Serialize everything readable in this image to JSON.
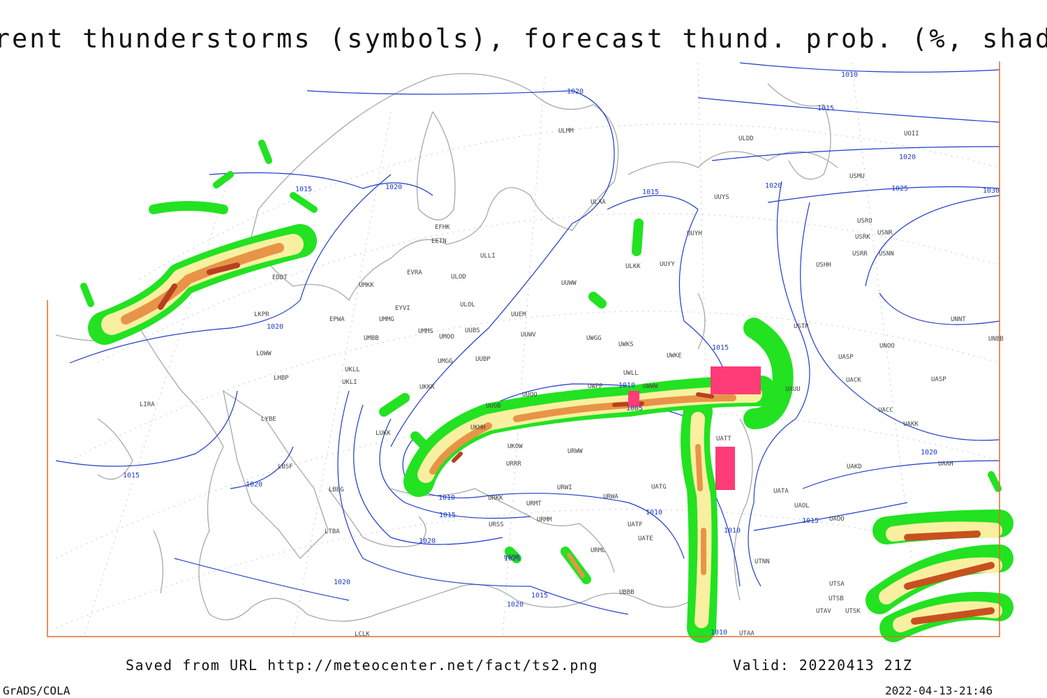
{
  "title": "Current thunderstorms (symbols), forecast thund. prob. (%, shaded)",
  "footer": {
    "source": "Saved from URL http://meteocenter.net/fact/ts2.png",
    "valid": "Valid: 20220413 21Z",
    "software": "GrADS/COLA",
    "timestamp": "2022-04-13-21:46"
  },
  "stations": [
    "ULMM",
    "ULDD",
    "UOII",
    "USMU",
    "ULAA",
    "UUYS",
    "USRO",
    "USRK",
    "USRR",
    "USNR",
    "USNN",
    "UUYH",
    "USHH",
    "EFHK",
    "EETN",
    "ULLI",
    "UUYY",
    "ULKK",
    "ULOD",
    "EVRA",
    "UMKK",
    "UUWW",
    "EDDT",
    "EYVI",
    "ULOL",
    "UUEM",
    "LKPR",
    "EPWA",
    "UMMG",
    "UNNT",
    "USTR",
    "UMMS",
    "UMOO",
    "UUBS",
    "UUWV",
    "UWGG",
    "UWKS",
    "UNOO",
    "UNBB",
    "UMBB",
    "LOWW",
    "UWKE",
    "UASP",
    "UUBP",
    "UMGG",
    "UACK",
    "UASP",
    "UKLL",
    "LHBP",
    "UKLI",
    "UKKK",
    "UWPP",
    "UWWW",
    "UWLL",
    "UAUU",
    "LIRA",
    "UUOO",
    "UUOB",
    "UACC",
    "LYBE",
    "UKHH",
    "UAKK",
    "UATT",
    "UKOW",
    "URWW",
    "LUKK",
    "URRR",
    "UAKD",
    "UAAH",
    "LBSF",
    "URWI",
    "UATG",
    "LBBG",
    "UATA",
    "URKK",
    "URMT",
    "URWA",
    "UAOL",
    "UAOO",
    "URSS",
    "URMM",
    "UATF",
    "UATE",
    "LTBA",
    "URML",
    "UGSB",
    "UTNN",
    "UBBB",
    "UTSA",
    "UTSB",
    "UTAV",
    "UTSK",
    "LCLK",
    "UTAA"
  ],
  "isobar_labels": [
    "1010",
    "1015",
    "1020",
    "1020",
    "1020",
    "1025",
    "1030",
    "1015",
    "1020",
    "1015",
    "1020",
    "1015",
    "1010",
    "1005",
    "1015",
    "1020",
    "1020",
    "1010",
    "1015",
    "1010",
    "1015",
    "1020",
    "1010",
    "1020",
    "1025",
    "1015",
    "1020",
    "1010"
  ]
}
